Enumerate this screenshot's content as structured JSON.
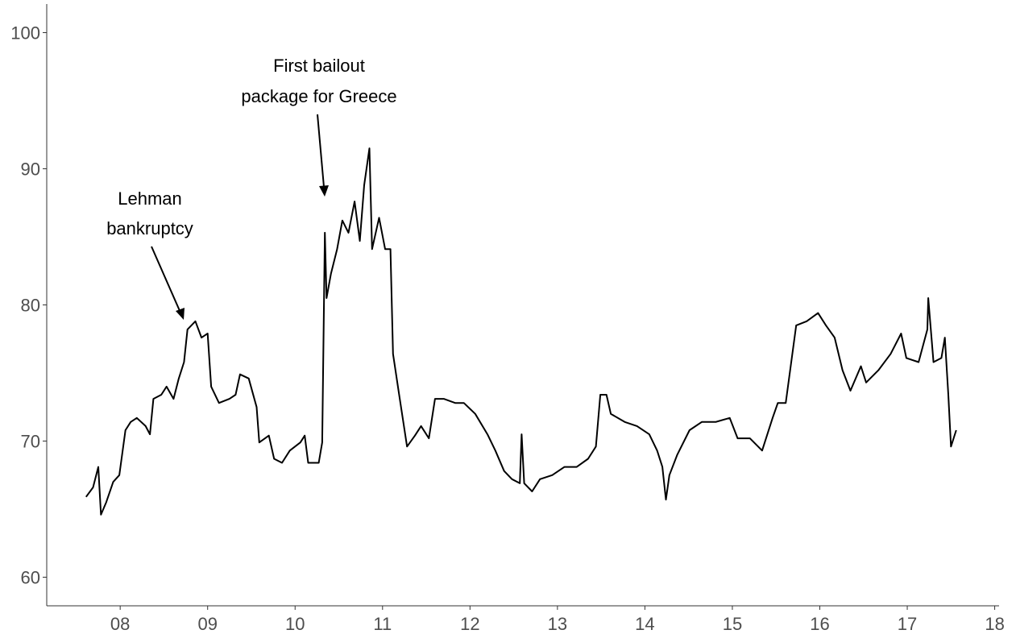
{
  "chart_data": {
    "type": "line",
    "x": [
      7.61,
      7.69,
      7.75,
      7.78,
      7.84,
      7.92,
      7.99,
      8.06,
      8.12,
      8.19,
      8.29,
      8.34,
      8.38,
      8.47,
      8.53,
      8.61,
      8.67,
      8.73,
      8.77,
      8.86,
      8.93,
      9.0,
      9.04,
      9.13,
      9.25,
      9.32,
      9.37,
      9.47,
      9.56,
      9.59,
      9.7,
      9.76,
      9.85,
      9.94,
      10.06,
      10.11,
      10.15,
      10.27,
      10.31,
      10.34,
      10.36,
      10.41,
      10.48,
      10.54,
      10.61,
      10.68,
      10.74,
      10.79,
      10.85,
      10.88,
      10.96,
      11.03,
      11.09,
      11.12,
      11.19,
      11.28,
      11.37,
      11.44,
      11.53,
      11.6,
      11.7,
      11.83,
      11.93,
      12.06,
      12.2,
      12.29,
      12.39,
      12.48,
      12.57,
      12.59,
      12.62,
      12.71,
      12.8,
      12.94,
      13.08,
      13.22,
      13.35,
      13.44,
      13.49,
      13.56,
      13.61,
      13.77,
      13.91,
      14.05,
      14.14,
      14.2,
      14.24,
      14.28,
      14.37,
      14.51,
      14.65,
      14.81,
      14.97,
      15.06,
      15.2,
      15.34,
      15.46,
      15.52,
      15.61,
      15.73,
      15.85,
      15.98,
      16.07,
      16.17,
      16.26,
      16.35,
      16.47,
      16.53,
      16.67,
      16.81,
      16.93,
      16.99,
      17.13,
      17.23,
      17.24,
      17.3,
      17.39,
      17.43,
      17.47,
      17.5,
      17.56
    ],
    "series": [
      {
        "color": "#000000",
        "values": [
          65.9,
          66.6,
          68.1,
          64.6,
          65.5,
          67.0,
          67.5,
          70.8,
          71.4,
          71.7,
          71.1,
          70.5,
          73.1,
          73.4,
          74.0,
          73.1,
          74.6,
          75.8,
          78.2,
          78.8,
          77.6,
          77.9,
          74.0,
          72.8,
          73.1,
          73.4,
          74.9,
          74.6,
          72.5,
          69.9,
          70.4,
          68.7,
          68.4,
          69.3,
          69.9,
          70.4,
          68.4,
          68.4,
          69.9,
          85.3,
          80.5,
          82.3,
          84.1,
          86.2,
          85.3,
          87.6,
          84.7,
          88.8,
          91.5,
          84.1,
          86.4,
          84.1,
          84.1,
          76.4,
          73.4,
          69.6,
          70.4,
          71.1,
          70.2,
          73.1,
          73.1,
          72.8,
          72.8,
          72.0,
          70.5,
          69.3,
          67.8,
          67.2,
          66.9,
          70.5,
          66.9,
          66.3,
          67.2,
          67.5,
          68.1,
          68.1,
          68.7,
          69.6,
          73.4,
          73.4,
          72.0,
          71.4,
          71.1,
          70.5,
          69.3,
          68.1,
          65.7,
          67.5,
          69.0,
          70.8,
          71.4,
          71.4,
          71.7,
          70.2,
          70.2,
          69.3,
          71.7,
          72.8,
          72.8,
          78.5,
          78.8,
          79.4,
          78.5,
          77.6,
          75.2,
          73.7,
          75.5,
          74.3,
          75.2,
          76.4,
          77.9,
          76.1,
          75.8,
          78.2,
          80.5,
          75.8,
          76.1,
          77.6,
          73.4,
          69.6,
          70.8
        ]
      }
    ],
    "xlim": [
      7.16,
      18.05
    ],
    "ylim": [
      57.9,
      102.1
    ],
    "xticks": [
      {
        "value": 8,
        "label": "08"
      },
      {
        "value": 9,
        "label": "09"
      },
      {
        "value": 10,
        "label": "10"
      },
      {
        "value": 11,
        "label": "11"
      },
      {
        "value": 12,
        "label": "12"
      },
      {
        "value": 13,
        "label": "13"
      },
      {
        "value": 14,
        "label": "14"
      },
      {
        "value": 15,
        "label": "15"
      },
      {
        "value": 16,
        "label": "16"
      },
      {
        "value": 17,
        "label": "17"
      },
      {
        "value": 18,
        "label": "18"
      }
    ],
    "yticks": [
      60,
      70,
      80,
      90,
      100
    ],
    "annotations": [
      {
        "text": [
          "Lehman",
          "bankruptcy"
        ]
      },
      {
        "text": [
          "First bailout",
          "package for Greece"
        ]
      }
    ]
  }
}
